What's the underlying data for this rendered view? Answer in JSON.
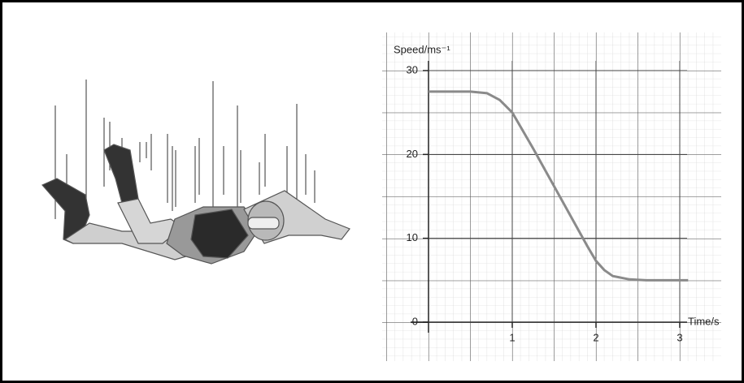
{
  "chart_data": {
    "type": "line",
    "y_label": "Speed/ms⁻¹",
    "x_label": "Time/s",
    "x": [
      0,
      0.5,
      0.7,
      0.85,
      1.0,
      1.25,
      1.5,
      1.75,
      1.9,
      2.0,
      2.1,
      2.2,
      2.4,
      2.6,
      3.1
    ],
    "values": [
      27.5,
      27.5,
      27.3,
      26.5,
      25,
      20.7,
      16.2,
      11.7,
      9,
      7.3,
      6.2,
      5.5,
      5.1,
      5,
      5
    ],
    "color": "#8a8a8a",
    "xlim": [
      0,
      3
    ],
    "ylim": [
      0,
      30
    ],
    "xticks": [
      1,
      2,
      3
    ],
    "yticks": [
      0,
      10,
      20,
      30
    ],
    "grid": true
  }
}
